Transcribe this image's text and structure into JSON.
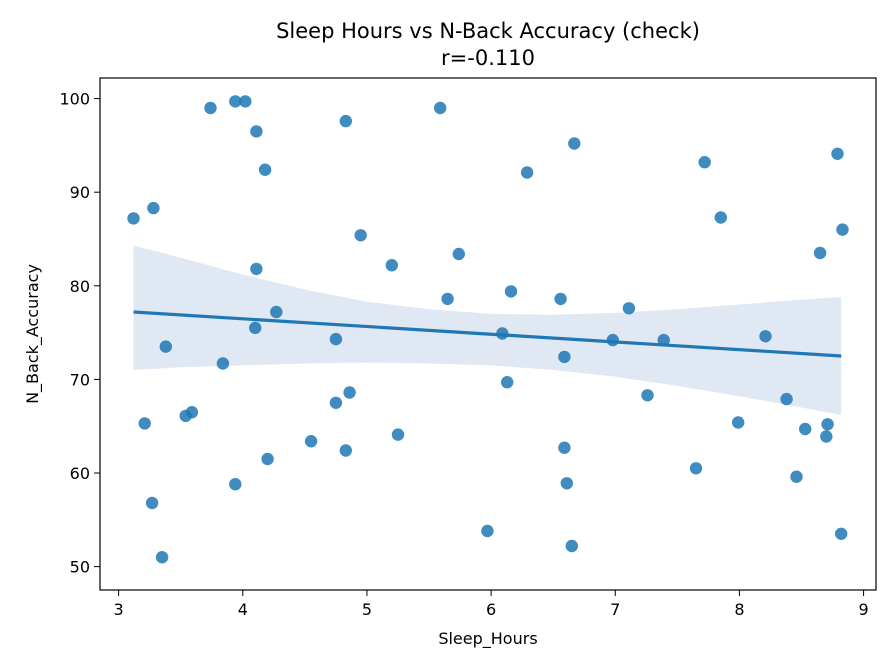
{
  "chart_data": {
    "type": "scatter",
    "title": "Sleep Hours vs N-Back Accuracy (check)",
    "subtitle": "r=-0.110",
    "xlabel": "Sleep_Hours",
    "ylabel": "N_Back_Accuracy",
    "xlim": [
      2.85,
      9.1
    ],
    "ylim": [
      47.5,
      102.2
    ],
    "xticks": [
      3,
      4,
      5,
      6,
      7,
      8,
      9
    ],
    "yticks": [
      50,
      60,
      70,
      80,
      90,
      100
    ],
    "grid": false,
    "legend": "none",
    "colors": {
      "points": "#1f77b4",
      "line": "#1f77b4",
      "band": "#dbe6f2"
    },
    "points": [
      {
        "x": 3.12,
        "y": 87.2
      },
      {
        "x": 3.21,
        "y": 65.3
      },
      {
        "x": 3.27,
        "y": 56.8
      },
      {
        "x": 3.28,
        "y": 88.3
      },
      {
        "x": 3.35,
        "y": 51.0
      },
      {
        "x": 3.38,
        "y": 73.5
      },
      {
        "x": 3.54,
        "y": 66.1
      },
      {
        "x": 3.59,
        "y": 66.5
      },
      {
        "x": 3.74,
        "y": 99.0
      },
      {
        "x": 3.84,
        "y": 71.7
      },
      {
        "x": 3.94,
        "y": 99.7
      },
      {
        "x": 3.94,
        "y": 58.8
      },
      {
        "x": 4.02,
        "y": 99.7
      },
      {
        "x": 4.1,
        "y": 75.5
      },
      {
        "x": 4.11,
        "y": 81.8
      },
      {
        "x": 4.11,
        "y": 96.5
      },
      {
        "x": 4.18,
        "y": 92.4
      },
      {
        "x": 4.2,
        "y": 61.5
      },
      {
        "x": 4.27,
        "y": 77.2
      },
      {
        "x": 4.55,
        "y": 63.4
      },
      {
        "x": 4.75,
        "y": 74.3
      },
      {
        "x": 4.75,
        "y": 67.5
      },
      {
        "x": 4.83,
        "y": 97.6
      },
      {
        "x": 4.83,
        "y": 62.4
      },
      {
        "x": 4.86,
        "y": 68.6
      },
      {
        "x": 4.95,
        "y": 85.4
      },
      {
        "x": 5.2,
        "y": 82.2
      },
      {
        "x": 5.25,
        "y": 64.1
      },
      {
        "x": 5.59,
        "y": 99.0
      },
      {
        "x": 5.65,
        "y": 78.6
      },
      {
        "x": 5.74,
        "y": 83.4
      },
      {
        "x": 5.97,
        "y": 53.8
      },
      {
        "x": 6.09,
        "y": 74.9
      },
      {
        "x": 6.13,
        "y": 69.7
      },
      {
        "x": 6.16,
        "y": 79.4
      },
      {
        "x": 6.29,
        "y": 92.1
      },
      {
        "x": 6.56,
        "y": 78.6
      },
      {
        "x": 6.59,
        "y": 72.4
      },
      {
        "x": 6.59,
        "y": 62.7
      },
      {
        "x": 6.61,
        "y": 58.9
      },
      {
        "x": 6.65,
        "y": 52.2
      },
      {
        "x": 6.67,
        "y": 95.2
      },
      {
        "x": 6.98,
        "y": 74.2
      },
      {
        "x": 7.11,
        "y": 77.6
      },
      {
        "x": 7.26,
        "y": 68.3
      },
      {
        "x": 7.39,
        "y": 74.2
      },
      {
        "x": 7.65,
        "y": 60.5
      },
      {
        "x": 7.72,
        "y": 93.2
      },
      {
        "x": 7.85,
        "y": 87.3
      },
      {
        "x": 7.99,
        "y": 65.4
      },
      {
        "x": 8.21,
        "y": 74.6
      },
      {
        "x": 8.38,
        "y": 67.9
      },
      {
        "x": 8.46,
        "y": 59.6
      },
      {
        "x": 8.53,
        "y": 64.7
      },
      {
        "x": 8.65,
        "y": 83.5
      },
      {
        "x": 8.7,
        "y": 63.9
      },
      {
        "x": 8.71,
        "y": 65.2
      },
      {
        "x": 8.79,
        "y": 94.1
      },
      {
        "x": 8.82,
        "y": 53.5
      },
      {
        "x": 8.83,
        "y": 86.0
      }
    ],
    "fit_line": {
      "x": [
        3.12,
        8.82
      ],
      "y": [
        77.2,
        72.5
      ]
    },
    "confidence_band": {
      "x": [
        3.12,
        3.5,
        4.0,
        4.5,
        5.0,
        5.5,
        6.0,
        6.5,
        7.0,
        7.5,
        8.0,
        8.5,
        8.82
      ],
      "upper": [
        84.3,
        83.0,
        81.2,
        79.6,
        78.3,
        77.5,
        77.0,
        76.9,
        77.1,
        77.5,
        78.0,
        78.5,
        78.8
      ],
      "lower": [
        71.0,
        71.3,
        71.5,
        71.7,
        71.8,
        71.7,
        71.5,
        71.0,
        70.3,
        69.3,
        68.2,
        67.0,
        66.2
      ]
    }
  }
}
